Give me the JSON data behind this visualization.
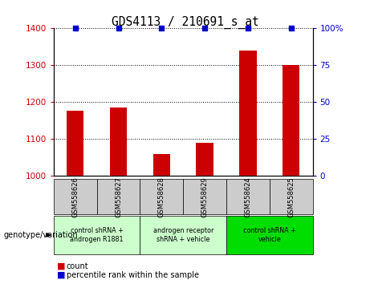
{
  "title": "GDS4113 / 210691_s_at",
  "samples": [
    "GSM558626",
    "GSM558627",
    "GSM558628",
    "GSM558629",
    "GSM558624",
    "GSM558625"
  ],
  "bar_values": [
    1178,
    1185,
    1060,
    1090,
    1340,
    1300
  ],
  "percentile_values": [
    100,
    100,
    100,
    100,
    100,
    100
  ],
  "ylim_left": [
    1000,
    1400
  ],
  "ylim_right": [
    0,
    100
  ],
  "yticks_left": [
    1000,
    1100,
    1200,
    1300,
    1400
  ],
  "yticks_right": [
    0,
    25,
    50,
    75,
    100
  ],
  "bar_color": "#cc0000",
  "percentile_color": "#0000cc",
  "sample_box_color": "#cccccc",
  "group_configs": [
    {
      "start": 0,
      "end": 2,
      "label": "control shRNA +\nandrogen R1881",
      "color": "#ccffcc"
    },
    {
      "start": 2,
      "end": 4,
      "label": "androgen receptor\nshRNA + vehicle",
      "color": "#ccffcc"
    },
    {
      "start": 4,
      "end": 6,
      "label": "control shRNA +\nvehicle",
      "color": "#00dd00"
    }
  ],
  "genotype_label": "genotype/variation",
  "legend_count_label": "count",
  "legend_percentile_label": "percentile rank within the sample"
}
